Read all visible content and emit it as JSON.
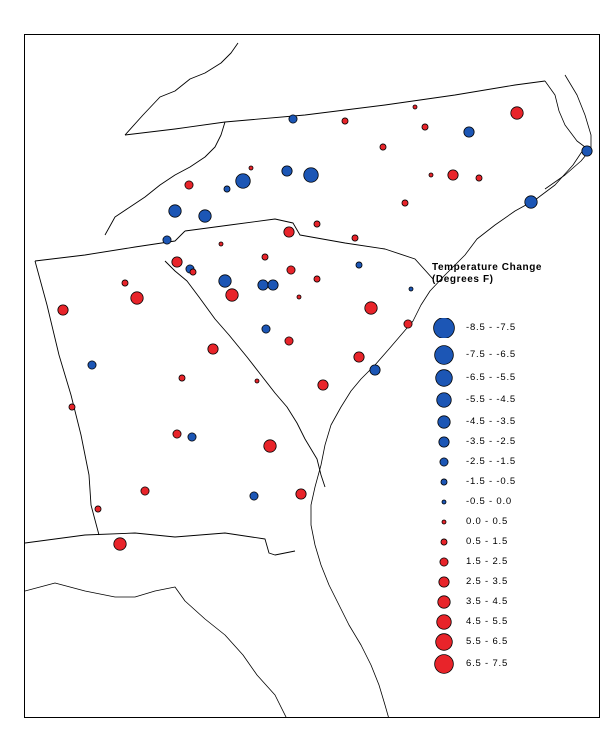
{
  "legend": {
    "title_line1": "Temperature Change",
    "title_line2": "(Degrees F)",
    "classes": [
      {
        "label": "-8.5 - -7.5",
        "color": "#1c56b5",
        "magnitude": 8
      },
      {
        "label": "-7.5 - -6.5",
        "color": "#1c56b5",
        "magnitude": 7
      },
      {
        "label": "-6.5 - -5.5",
        "color": "#1c56b5",
        "magnitude": 6
      },
      {
        "label": "-5.5 - -4.5",
        "color": "#1c56b5",
        "magnitude": 5
      },
      {
        "label": "-4.5 - -3.5",
        "color": "#1c56b5",
        "magnitude": 4
      },
      {
        "label": "-3.5 - -2.5",
        "color": "#1c56b5",
        "magnitude": 3
      },
      {
        "label": "-2.5 - -1.5",
        "color": "#1c56b5",
        "magnitude": 2
      },
      {
        "label": "-1.5 - -0.5",
        "color": "#1c56b5",
        "magnitude": 1
      },
      {
        "label": "-0.5 - 0.0",
        "color": "#1c56b5",
        "magnitude": 0
      },
      {
        "label": "0.0 - 0.5",
        "color": "#e8242a",
        "magnitude": 0
      },
      {
        "label": "0.5 - 1.5",
        "color": "#e8242a",
        "magnitude": 1
      },
      {
        "label": "1.5 - 2.5",
        "color": "#e8242a",
        "magnitude": 2
      },
      {
        "label": "2.5 - 3.5",
        "color": "#e8242a",
        "magnitude": 3
      },
      {
        "label": "3.5 - 4.5",
        "color": "#e8242a",
        "magnitude": 4
      },
      {
        "label": "4.5 - 5.5",
        "color": "#e8242a",
        "magnitude": 5
      },
      {
        "label": "5.5 - 6.5",
        "color": "#e8242a",
        "magnitude": 6
      },
      {
        "label": "6.5 - 7.5",
        "color": "#e8242a",
        "magnitude": 7
      }
    ]
  },
  "colors": {
    "cooling": "#1c56b5",
    "warming": "#e8242a",
    "outline": "#000000"
  }
}
